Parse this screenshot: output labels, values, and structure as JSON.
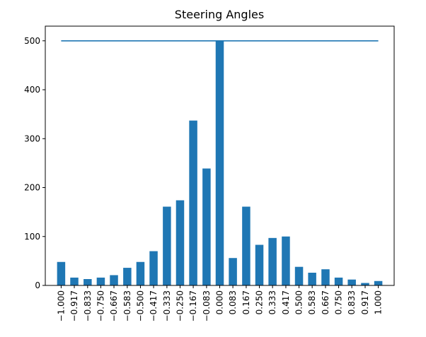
{
  "chart_data": {
    "type": "bar",
    "title": "Steering Angles",
    "xlabel": "",
    "ylabel": "",
    "bar_color": "#1f77b4",
    "ylim": [
      0,
      530
    ],
    "yticks": [
      0,
      100,
      200,
      300,
      400,
      500
    ],
    "x_ticks": [
      "−1.000",
      "−0.917",
      "−0.833",
      "−0.750",
      "−0.667",
      "−0.583",
      "−0.500",
      "−0.417",
      "−0.333",
      "−0.250",
      "−0.167",
      "−0.083",
      "0.000",
      "0.083",
      "0.167",
      "0.250",
      "0.333",
      "0.417",
      "0.500",
      "0.583",
      "0.667",
      "0.750",
      "0.833",
      "0.917",
      "1.000"
    ],
    "bars": [
      {
        "x": -1.0,
        "value": 48
      },
      {
        "x": -0.917,
        "value": 16
      },
      {
        "x": -0.833,
        "value": 13
      },
      {
        "x": -0.75,
        "value": 16
      },
      {
        "x": -0.667,
        "value": 21
      },
      {
        "x": -0.583,
        "value": 36
      },
      {
        "x": -0.5,
        "value": 48
      },
      {
        "x": -0.417,
        "value": 70
      },
      {
        "x": -0.333,
        "value": 161
      },
      {
        "x": -0.25,
        "value": 174
      },
      {
        "x": -0.167,
        "value": 337
      },
      {
        "x": -0.083,
        "value": 239
      },
      {
        "x": 0.0,
        "value": 500
      },
      {
        "x": 0.083,
        "value": 56
      },
      {
        "x": 0.167,
        "value": 161
      },
      {
        "x": 0.25,
        "value": 83
      },
      {
        "x": 0.333,
        "value": 97
      },
      {
        "x": 0.417,
        "value": 100
      },
      {
        "x": 0.5,
        "value": 38
      },
      {
        "x": 0.583,
        "value": 26
      },
      {
        "x": 0.667,
        "value": 33
      },
      {
        "x": 0.75,
        "value": 16
      },
      {
        "x": 0.833,
        "value": 12
      },
      {
        "x": 0.917,
        "value": 5
      },
      {
        "x": 1.0,
        "value": 9
      }
    ],
    "reference_line": {
      "x_start": -1.0,
      "x_end": 1.0,
      "y": 500
    }
  }
}
